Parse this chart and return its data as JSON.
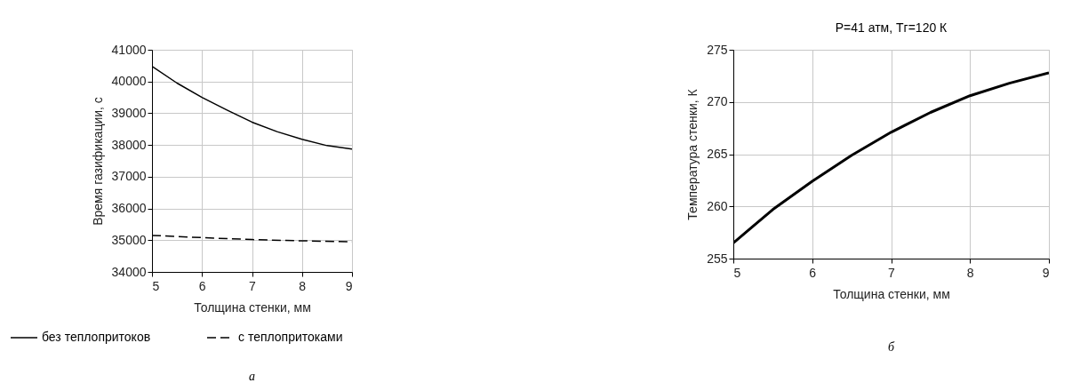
{
  "chart_data": [
    {
      "type": "line",
      "xlabel": "Толщина стенки, мм",
      "ylabel": "Время газификации, с",
      "xlim": [
        5,
        9
      ],
      "xticks": [
        5,
        6,
        7,
        8,
        9
      ],
      "ylim": [
        34000,
        41000
      ],
      "yticks": [
        34000,
        35000,
        36000,
        37000,
        38000,
        39000,
        40000,
        41000
      ],
      "grid": true,
      "legend": "bottom",
      "annotations": [
        "а"
      ],
      "series": [
        {
          "name": "без теплопритоков",
          "color": "#000000",
          "line_style": "solid",
          "x": [
            5,
            5.5,
            6,
            6.5,
            7,
            7.5,
            8,
            8.5,
            9
          ],
          "values": [
            40480,
            39950,
            39500,
            39100,
            38720,
            38420,
            38180,
            37980,
            37870
          ]
        },
        {
          "name": "с теплопритоками",
          "color": "#000000",
          "line_style": "dashed",
          "x": [
            5,
            6,
            7,
            8,
            9
          ],
          "values": [
            35150,
            35080,
            35020,
            34980,
            34950
          ]
        }
      ]
    },
    {
      "type": "line",
      "title": "P=41 атм, Tг=120 К",
      "xlabel": "Толщина стенки, мм",
      "ylabel": "Температура стенки, К",
      "xlim": [
        5,
        9
      ],
      "xticks": [
        5,
        6,
        7,
        8,
        9
      ],
      "ylim": [
        255,
        275
      ],
      "yticks": [
        255,
        260,
        265,
        270,
        275
      ],
      "grid": true,
      "annotations": [
        "б"
      ],
      "series": [
        {
          "color": "#000000",
          "line_style": "solid",
          "x": [
            5,
            5.5,
            6,
            6.5,
            7,
            7.5,
            8,
            8.5,
            9
          ],
          "values": [
            256.5,
            259.7,
            262.4,
            264.9,
            267.1,
            269,
            270.6,
            271.8,
            272.8
          ]
        }
      ]
    }
  ]
}
